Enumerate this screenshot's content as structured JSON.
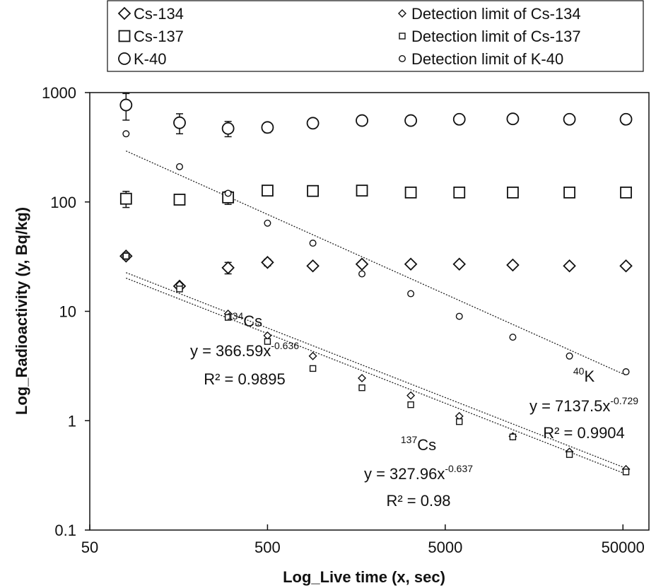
{
  "chart_data": {
    "type": "scatter",
    "xlabel": "Log_Live time (x, sec)",
    "ylabel": "Log_Radioactivity (y, Bq/kg)",
    "x_scale": "log",
    "y_scale": "log",
    "xlim": [
      50,
      70000
    ],
    "ylim": [
      0.1,
      1000
    ],
    "x_ticks": [
      50,
      500,
      5000,
      50000
    ],
    "x_tick_labels": [
      "50",
      "500",
      "5000",
      "50000"
    ],
    "y_ticks": [
      0.1,
      1,
      10,
      100,
      1000
    ],
    "y_tick_labels": [
      "0.1",
      "1",
      "10",
      "100",
      "1000"
    ],
    "grid": false,
    "legend_position": "top",
    "x": [
      80,
      160,
      300,
      500,
      900,
      1700,
      3200,
      6000,
      12000,
      25000,
      52000
    ],
    "series": [
      {
        "name": "Cs-134",
        "marker": "diamond",
        "size": "large",
        "y": [
          32,
          17,
          25,
          28,
          26,
          27,
          27,
          27,
          26.5,
          26,
          26
        ],
        "error": [
          2,
          1,
          3,
          2,
          0,
          0,
          0,
          0,
          0,
          0,
          0
        ]
      },
      {
        "name": "Cs-137",
        "marker": "square",
        "size": "large",
        "y": [
          107,
          105,
          110,
          127,
          126,
          127,
          122,
          122,
          122,
          122,
          122
        ],
        "error": [
          18,
          10,
          15,
          0,
          0,
          0,
          0,
          0,
          0,
          0,
          0
        ]
      },
      {
        "name": "K-40",
        "marker": "circle",
        "size": "large",
        "y": [
          770,
          530,
          470,
          480,
          525,
          555,
          555,
          570,
          575,
          570,
          570
        ],
        "error": [
          210,
          110,
          75,
          50,
          0,
          0,
          0,
          0,
          0,
          0,
          0
        ]
      },
      {
        "name": "Detection limit of Cs-134",
        "marker": "diamond",
        "size": "small",
        "y": [
          32,
          17.5,
          9.5,
          6.0,
          3.9,
          2.45,
          1.7,
          1.1,
          0.72,
          0.52,
          0.36
        ],
        "error": [
          0,
          0,
          0,
          0,
          0,
          0,
          0,
          0,
          0,
          0,
          0
        ]
      },
      {
        "name": "Detection limit of Cs-137",
        "marker": "square",
        "size": "small",
        "y": [
          32,
          16,
          8.8,
          5.3,
          3.0,
          2.0,
          1.4,
          0.98,
          0.71,
          0.49,
          0.34
        ],
        "error": [
          0,
          0,
          0,
          0,
          0,
          0,
          0,
          0,
          0,
          0,
          0
        ]
      },
      {
        "name": "Detection limit of K-40",
        "marker": "circle",
        "size": "small",
        "y": [
          420,
          210,
          120,
          64,
          42,
          22,
          14.5,
          9,
          5.8,
          3.9,
          2.8
        ],
        "error": [
          0,
          0,
          0,
          0,
          0,
          0,
          0,
          0,
          0,
          0,
          0
        ]
      }
    ],
    "trendlines": [
      {
        "coef": 366.59,
        "exp": -0.636,
        "x_range": [
          80,
          52000
        ]
      },
      {
        "coef": 327.96,
        "exp": -0.637,
        "x_range": [
          80,
          52000
        ]
      },
      {
        "coef": 7137.5,
        "exp": -0.729,
        "x_range": [
          80,
          52000
        ]
      }
    ],
    "annotations": [
      {
        "mass": "134",
        "element": "Cs",
        "eq_prefix": "y = 366.59x",
        "eq_exp": "-0.636",
        "r2": "R² = 0.9895"
      },
      {
        "mass": "137",
        "element": "Cs",
        "eq_prefix": "y = 327.96x",
        "eq_exp": "-0.637",
        "r2": "R² = 0.98"
      },
      {
        "mass": "40",
        "element": "K",
        "eq_prefix": "y = 7137.5x",
        "eq_exp": "-0.729",
        "r2": "R² = 0.9904"
      }
    ]
  }
}
